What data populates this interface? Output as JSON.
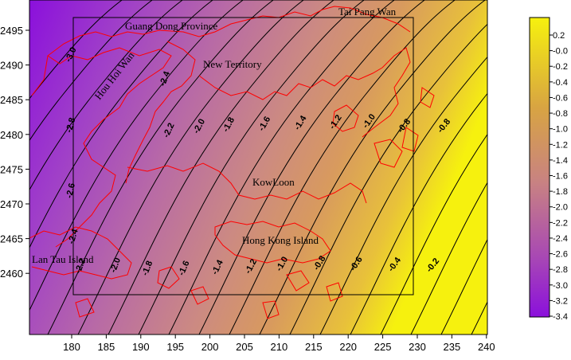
{
  "map": {
    "type": "contour",
    "colorscale": [
      "#8b10dc",
      "#a040c8",
      "#b86aa6",
      "#cc8a82",
      "#d89a5e",
      "#e8c13a",
      "#f6f10e"
    ],
    "contour_color": "#000000",
    "coastline_color": "#ff0000",
    "frame_color": "#000000",
    "x_ticks": [
      "180",
      "185",
      "190",
      "195",
      "200",
      "205",
      "210",
      "215",
      "220",
      "225",
      "230",
      "235",
      "240"
    ],
    "y_ticks": [
      "2495",
      "2490",
      "2485",
      "2480",
      "2475",
      "2470",
      "2465",
      "2460"
    ],
    "contour_labels": [
      "-3.0",
      "-2.8",
      "-2.6",
      "-2.4",
      "-2.2",
      "-2.0",
      "-1.8",
      "-1.6",
      "-1.4",
      "-1.2",
      "-1.0",
      "-0.8",
      "-0.6",
      "-0.4",
      "-0.2"
    ],
    "colorbar_ticks": [
      "0.2",
      "-0.0",
      "-0.2",
      "-0.4",
      "-0.6",
      "-0.8",
      "-1.0",
      "-1.2",
      "-1.4",
      "-1.6",
      "-1.8",
      "-2.0",
      "-2.2",
      "-2.4",
      "-2.6",
      "-2.8",
      "-3.0",
      "-3.2",
      "-3.4"
    ],
    "place_names": {
      "tai_pang_wan": "Tai Pang Wan",
      "guang_dong": "Guang Dong Province",
      "new_territory": "New Territory",
      "hou_hoi_wan": "Hou Hoi Wan",
      "kowloon": "KowLoon",
      "hong_kong_island": "Hong Kong Island",
      "lan_tau": "Lan Tau Island"
    }
  }
}
